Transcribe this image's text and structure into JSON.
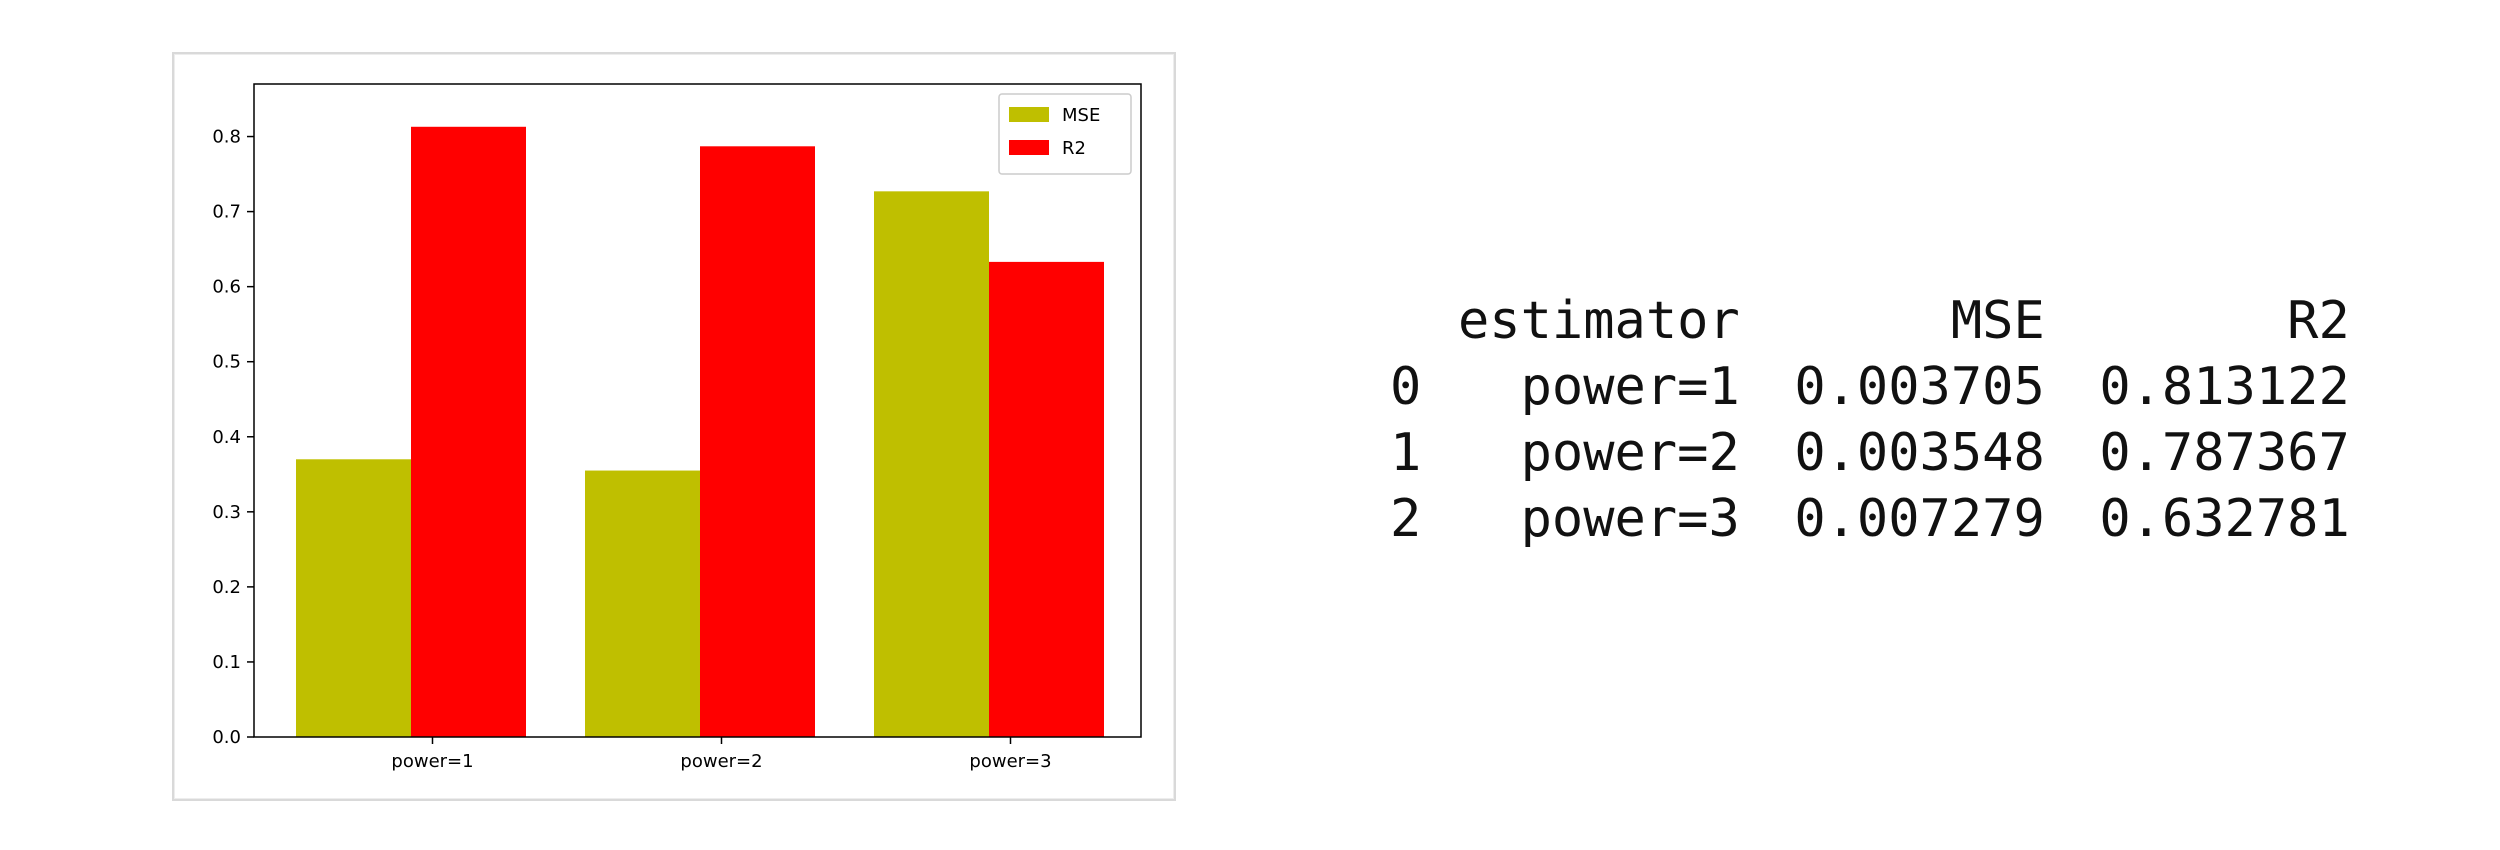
{
  "chart_data": {
    "type": "bar",
    "categories": [
      "power=1",
      "power=2",
      "power=3"
    ],
    "series": [
      {
        "name": "MSE",
        "color": "#bfbf00",
        "values": [
          0.37,
          0.355,
          0.727
        ]
      },
      {
        "name": "R2",
        "color": "#ff0000",
        "values": [
          0.813,
          0.787,
          0.633
        ]
      }
    ],
    "ylim": [
      0,
      0.87
    ],
    "yticks": [
      "0.0",
      "0.1",
      "0.2",
      "0.3",
      "0.4",
      "0.5",
      "0.6",
      "0.7",
      "0.8"
    ],
    "legend_position": "top-right",
    "grid": false,
    "title": "",
    "xlabel": "",
    "ylabel": ""
  },
  "table": {
    "headers": {
      "index": "",
      "estimator": "estimator",
      "mse": "MSE",
      "r2": "R2"
    },
    "rows": [
      {
        "index": "0",
        "estimator": "power=1",
        "mse": "0.003705",
        "r2": "0.813122"
      },
      {
        "index": "1",
        "estimator": "power=2",
        "mse": "0.003548",
        "r2": "0.787367"
      },
      {
        "index": "2",
        "estimator": "power=3",
        "mse": "0.007279",
        "r2": "0.632781"
      }
    ]
  }
}
